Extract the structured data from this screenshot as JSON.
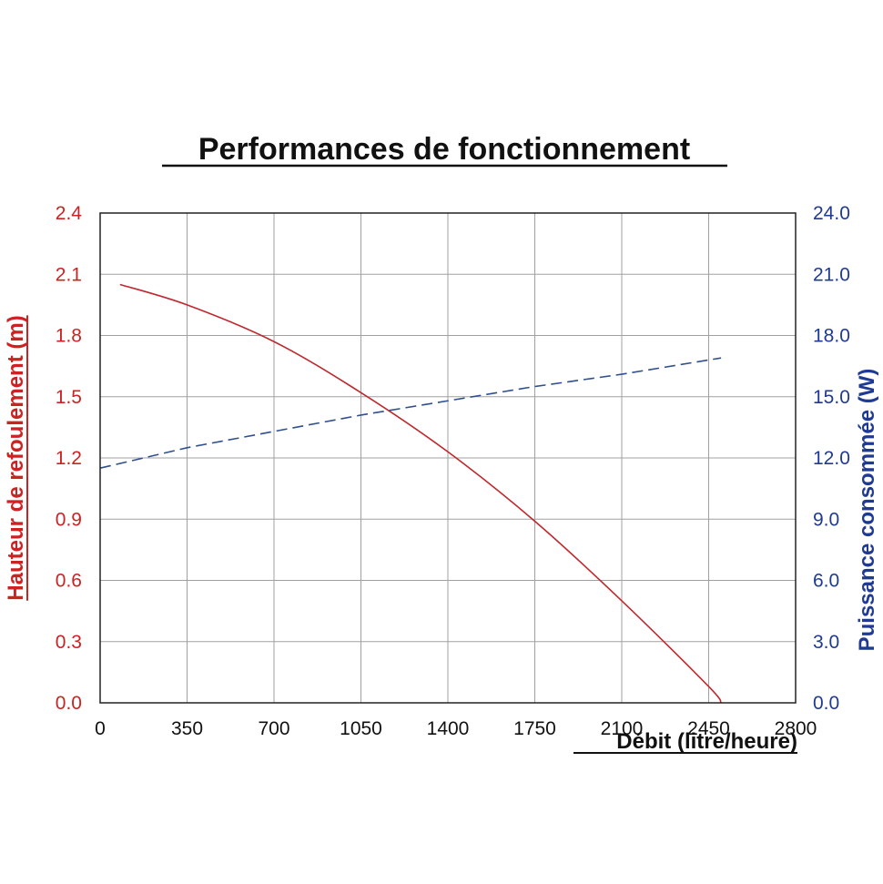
{
  "chart_data": {
    "type": "line",
    "title": "Performances de fonctionnement",
    "xlabel": "Débit (litre/heure)",
    "ylabel_left": "Hauteur de refoulement (m)",
    "ylabel_right": "Puissance consommée (W)",
    "xlim": [
      0,
      2800
    ],
    "ylim_left": [
      0,
      2.4
    ],
    "ylim_right": [
      0,
      24
    ],
    "x_ticks": [
      "0",
      "350",
      "700",
      "1050",
      "1400",
      "1750",
      "2100",
      "2450",
      "2800"
    ],
    "y_left_ticks": [
      "0.0",
      "0.3",
      "0.6",
      "0.9",
      "1.2",
      "1.5",
      "1.8",
      "2.1",
      "2.4"
    ],
    "y_right_ticks": [
      "0.0",
      "3.0",
      "6.0",
      "9.0",
      "12.0",
      "15.0",
      "18.0",
      "21.0",
      "24.0"
    ],
    "grid": true,
    "colors": {
      "left_axis": "#cc2222",
      "right_axis": "#1f3a93",
      "head_curve": "#c0282d",
      "power_curve": "#2f4f8f",
      "grid": "#a0a0a0"
    },
    "series": [
      {
        "axis": "left",
        "style": "solid",
        "x": [
          80,
          350,
          700,
          1050,
          1400,
          1750,
          2100,
          2450,
          2500
        ],
        "y": [
          2.05,
          1.95,
          1.77,
          1.52,
          1.23,
          0.89,
          0.5,
          0.08,
          0.0
        ]
      },
      {
        "axis": "right",
        "style": "dashed",
        "x": [
          0,
          350,
          700,
          1050,
          1400,
          1750,
          2100,
          2500
        ],
        "y": [
          11.5,
          12.5,
          13.3,
          14.1,
          14.8,
          15.5,
          16.1,
          16.9
        ]
      }
    ]
  }
}
